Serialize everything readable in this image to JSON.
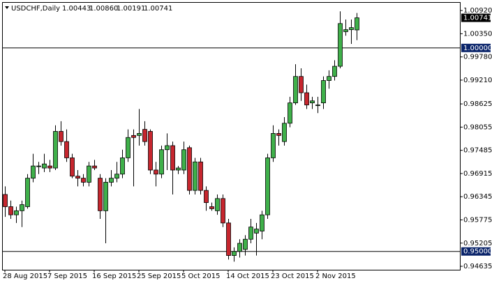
{
  "chart_data": {
    "type": "candlestick",
    "header": {
      "symbol": "USDCHF,Daily",
      "ohlc": [
        "1.00443",
        "1.00860",
        "1.00191",
        "1.00741"
      ]
    },
    "categories": [
      "28 Aug 2015",
      null,
      null,
      null,
      null,
      null,
      null,
      null,
      "7 Sep 2015",
      null,
      null,
      null,
      null,
      null,
      null,
      null,
      "16 Sep 2015",
      null,
      null,
      null,
      null,
      null,
      null,
      null,
      "25 Sep 2015",
      null,
      null,
      null,
      null,
      null,
      null,
      null,
      "5 Oct 2015",
      null,
      null,
      null,
      null,
      null,
      null,
      null,
      "14 Oct 2015",
      null,
      null,
      null,
      null,
      null,
      null,
      null,
      "23 Oct 2015",
      null,
      null,
      null,
      null,
      null,
      null,
      null,
      "2 Nov 2015",
      null,
      null,
      null,
      null,
      null,
      null,
      null
    ],
    "open": [
      0.964,
      0.961,
      0.959,
      0.96,
      0.961,
      0.968,
      0.971,
      0.9705,
      0.971,
      0.9705,
      0.9795,
      0.977,
      0.973,
      0.9685,
      0.968,
      0.967,
      0.971,
      0.968,
      0.96,
      0.967,
      0.968,
      0.969,
      0.973,
      0.9785,
      0.9785,
      0.98,
      0.9795,
      0.97,
      0.969,
      0.975,
      0.976,
      0.97,
      0.97,
      0.9755,
      0.965,
      0.972,
      0.965,
      0.961,
      0.96,
      0.963,
      0.957,
      0.949,
      0.95,
      0.9505,
      0.953,
      0.9545,
      0.955,
      0.959,
      0.973,
      0.979,
      0.977,
      0.9815,
      0.9865,
      0.993,
      0.989,
      0.9865,
      0.986,
      0.9865,
      0.992,
      0.993,
      0.9955,
      1.004,
      1.0045,
      1.00443
    ],
    "high": [
      0.966,
      0.9625,
      0.961,
      0.9625,
      0.969,
      0.974,
      0.972,
      0.974,
      0.9725,
      0.981,
      0.982,
      0.98,
      0.974,
      0.97,
      0.969,
      0.972,
      0.9725,
      0.969,
      0.968,
      0.97,
      0.972,
      0.975,
      0.98,
      0.98,
      0.985,
      0.982,
      0.98,
      0.972,
      0.976,
      0.979,
      0.977,
      0.971,
      0.977,
      0.976,
      0.973,
      0.973,
      0.966,
      0.962,
      0.964,
      0.964,
      0.958,
      0.951,
      0.953,
      0.954,
      0.958,
      0.957,
      0.96,
      0.974,
      0.981,
      0.98,
      0.983,
      0.988,
      0.996,
      0.995,
      0.991,
      0.988,
      0.988,
      0.993,
      0.9945,
      0.997,
      1.009,
      1.007,
      1.007,
      1.0086
    ],
    "low": [
      0.9585,
      0.958,
      0.957,
      0.956,
      0.9605,
      0.967,
      0.969,
      0.9695,
      0.9695,
      0.97,
      0.976,
      0.972,
      0.968,
      0.966,
      0.966,
      0.966,
      0.97,
      0.958,
      0.952,
      0.966,
      0.967,
      0.968,
      0.972,
      0.966,
      0.976,
      0.976,
      0.969,
      0.966,
      0.968,
      0.97,
      0.964,
      0.969,
      0.969,
      0.964,
      0.964,
      0.964,
      0.96,
      0.96,
      0.959,
      0.956,
      0.948,
      0.9475,
      0.9485,
      0.949,
      0.952,
      0.949,
      0.953,
      0.958,
      0.972,
      0.976,
      0.976,
      0.9805,
      0.986,
      0.987,
      0.985,
      0.985,
      0.984,
      0.985,
      0.99,
      0.992,
      0.995,
      1.003,
      1.001,
      1.00191
    ],
    "close": [
      0.961,
      0.959,
      0.96,
      0.9615,
      0.968,
      0.971,
      0.971,
      0.9715,
      0.9705,
      0.9795,
      0.977,
      0.973,
      0.9685,
      0.968,
      0.967,
      0.971,
      0.9705,
      0.96,
      0.967,
      0.968,
      0.969,
      0.973,
      0.978,
      0.978,
      0.979,
      0.977,
      0.97,
      0.969,
      0.975,
      0.976,
      0.97,
      0.9705,
      0.975,
      0.965,
      0.972,
      0.965,
      0.962,
      0.9605,
      0.963,
      0.957,
      0.949,
      0.95,
      0.952,
      0.953,
      0.956,
      0.9555,
      0.959,
      0.973,
      0.979,
      0.9785,
      0.9815,
      0.9865,
      0.993,
      0.989,
      0.986,
      0.987,
      0.986,
      0.992,
      0.993,
      0.9955,
      1.006,
      1.0045,
      1.005,
      1.00741
    ],
    "up_color": "#3fb04a",
    "down_color": "#c6262e",
    "ylim": [
      0.9455,
      1.0111
    ],
    "yticks": [
      {
        "value": 1.0092,
        "label": "1.00920"
      },
      {
        "value": 1.0035,
        "label": "1.00350"
      },
      {
        "value": 0.9978,
        "label": "0.99780"
      },
      {
        "value": 0.9921,
        "label": "0.99210"
      },
      0.98625,
      0.98055,
      0.97485,
      0.96915,
      0.96345,
      0.95775,
      0.95205,
      0.94635
    ],
    "hlines": [
      {
        "value": 1,
        "label": "1.00000"
      },
      {
        "value": 0.95,
        "label": "0.95000"
      }
    ],
    "current_price": 1.00741
  }
}
